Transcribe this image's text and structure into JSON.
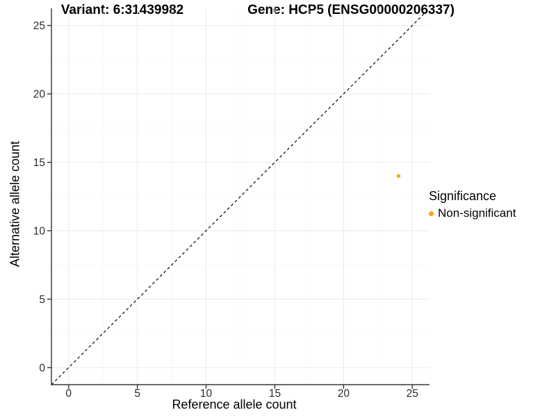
{
  "header": {
    "variant_title": "Variant: 6:31439982",
    "gene_title": "Gene: HCP5 (ENSG00000206337)"
  },
  "chart_data": {
    "type": "scatter",
    "xlabel": "Reference allele count",
    "ylabel": "Alternative allele count",
    "xlim": [
      0,
      25
    ],
    "ylim": [
      0,
      25
    ],
    "x_ticks": [
      0,
      5,
      10,
      15,
      20,
      25
    ],
    "y_ticks": [
      0,
      5,
      10,
      15,
      20,
      25
    ],
    "axis_expand": 1.25,
    "grid": "major+minor",
    "identity_line": {
      "slope": 1,
      "intercept": 0,
      "style": "dashed",
      "color": "#000000"
    },
    "series": [
      {
        "name": "Non-significant",
        "color": "#FFA500",
        "points": [
          {
            "x": 24,
            "y": 14
          }
        ]
      }
    ],
    "legend": {
      "title": "Significance",
      "position": "right",
      "items": [
        {
          "label": "Non-significant",
          "color": "#FFA500"
        }
      ]
    },
    "colors": {
      "grid_major": "#EBEBEB",
      "grid_minor": "#F4F4F4",
      "axis_line": "#333333",
      "tick_label": "#2B2B2B",
      "background": "#FFFFFF"
    }
  }
}
